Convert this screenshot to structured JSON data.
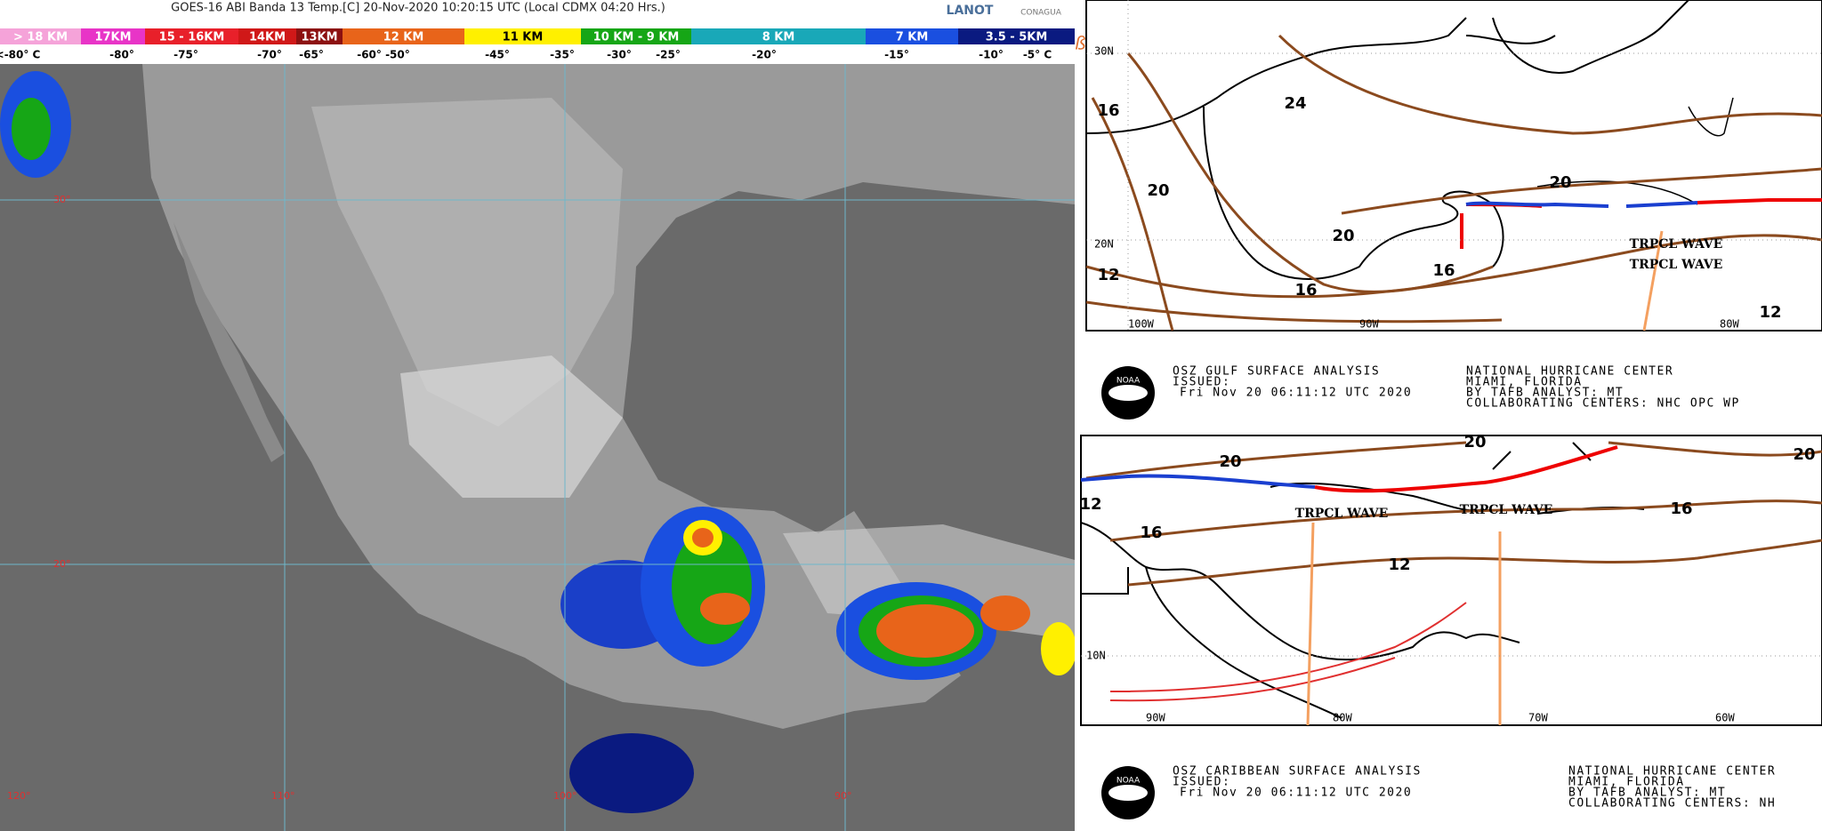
{
  "satellite": {
    "title": "GOES-16 ABI Banda 13 Temp.[C] 20-Nov-2020 10:20:15 UTC (Local CDMX  04:20 Hrs.)",
    "logos": [
      "LANOT",
      "CONAGUA"
    ],
    "legend_bands": [
      {
        "label": "> 18 KM",
        "color": "#f5a3d9"
      },
      {
        "label": "17KM",
        "color": "#e834c7"
      },
      {
        "label": "15 - 16KM",
        "color": "#e8202a"
      },
      {
        "label": "14KM",
        "color": "#d01818"
      },
      {
        "label": "13KM",
        "color": "#8c1010"
      },
      {
        "label": "12 KM",
        "color": "#e8641a"
      },
      {
        "label": "11 KM",
        "color": "#fff000"
      },
      {
        "label": "10 KM - 9 KM",
        "color": "#16a616"
      },
      {
        "label": "8 KM",
        "color": "#19a8b8"
      },
      {
        "label": "7 KM",
        "color": "#1a4fe0"
      },
      {
        "label": "3.5 - 5KM",
        "color": "#0a1a80"
      }
    ],
    "temperatures": [
      "<-80° C",
      "-80°",
      "-75°",
      "-70°",
      "-65°",
      "-60° -50°",
      "-45°",
      "-35°",
      "-30°",
      "-25°",
      "-20°",
      "-15°",
      "-10°",
      "-5° C"
    ],
    "latitudes": [
      "30°",
      "20°"
    ],
    "longitudes": [
      "120°",
      "110°",
      "100°",
      "90°"
    ]
  },
  "gulf_map": {
    "isobars": [
      "16",
      "20",
      "24",
      "20",
      "20",
      "16",
      "16",
      "12",
      "12"
    ],
    "coordinates": [
      "30N",
      "20N",
      "100W",
      "90W",
      "80W"
    ],
    "annotations": [
      "TRPCL WAVE",
      "TRPCL WAVE"
    ],
    "caption": {
      "title": "OSZ GULF SURFACE ANALYSIS",
      "issued": "ISSUED:",
      "time": "Fri Nov 20 06:11:12 UTC 2020",
      "center": "NATIONAL HURRICANE CENTER",
      "place": "MIAMI, FLORIDA",
      "analyst": "BY TAFB ANALYST: MT",
      "collab": "COLLABORATING CENTERS: NHC OPC WP"
    },
    "logo": "NOAA"
  },
  "caribbean_map": {
    "isobars": [
      "20",
      "20",
      "20",
      "16",
      "16",
      "12",
      "12"
    ],
    "coordinates": [
      "10N",
      "90W",
      "80W",
      "70W",
      "60W"
    ],
    "annotations": [
      "TRPCL WAVE",
      "TRPCL WAVE"
    ],
    "caption": {
      "title": "OSZ CARIBBEAN SURFACE ANALYSIS",
      "issued": "ISSUED:",
      "time": "Fri Nov 20 06:11:12 UTC 2020",
      "center": "NATIONAL HURRICANE CENTER",
      "place": "MIAMI, FLORIDA",
      "analyst": "BY TAFB ANALYST: MT",
      "collab": "COLLABORATING CENTERS: NH"
    },
    "logo": "NOAA"
  }
}
